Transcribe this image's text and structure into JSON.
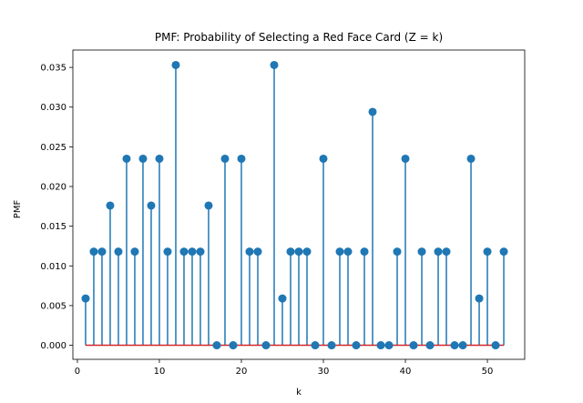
{
  "chart_data": {
    "type": "stem",
    "title": "PMF: Probability of Selecting a Red Face Card (Z = k)",
    "xlabel": "k",
    "ylabel": "PMF",
    "xlim": [
      -0.55,
      54.55
    ],
    "ylim": [
      -0.00177,
      0.03719
    ],
    "xticks": [
      0,
      10,
      20,
      30,
      40,
      50
    ],
    "xtick_labels": [
      "0",
      "10",
      "20",
      "30",
      "40",
      "50"
    ],
    "yticks": [
      0.0,
      0.005,
      0.01,
      0.015,
      0.02,
      0.025,
      0.03,
      0.035
    ],
    "ytick_labels": [
      "0.000",
      "0.005",
      "0.010",
      "0.015",
      "0.020",
      "0.025",
      "0.030",
      "0.035"
    ],
    "grid": false,
    "colors": {
      "stem": "#1f77b4",
      "baseline": "#d62728"
    },
    "baseline": {
      "y": 0,
      "x_from": 1,
      "x_to": 52
    },
    "x": [
      1,
      2,
      3,
      4,
      5,
      6,
      7,
      8,
      9,
      10,
      11,
      12,
      13,
      14,
      15,
      16,
      17,
      18,
      19,
      20,
      21,
      22,
      23,
      24,
      25,
      26,
      27,
      28,
      29,
      30,
      31,
      32,
      33,
      34,
      35,
      36,
      37,
      38,
      39,
      40,
      41,
      42,
      43,
      44,
      45,
      46,
      47,
      48,
      49,
      50,
      51,
      52
    ],
    "values": [
      0.0059,
      0.0118,
      0.0118,
      0.0176,
      0.0118,
      0.0235,
      0.0118,
      0.0235,
      0.0176,
      0.0235,
      0.0118,
      0.0353,
      0.0118,
      0.0118,
      0.0118,
      0.0176,
      0,
      0.0235,
      0,
      0.0235,
      0.0118,
      0.0118,
      0,
      0.0353,
      0.0059,
      0.0118,
      0.0118,
      0.0118,
      0,
      0.0235,
      0,
      0.0118,
      0.0118,
      0,
      0.0118,
      0.0294,
      0,
      0,
      0.0118,
      0.0235,
      0,
      0.0118,
      0,
      0.0118,
      0.0118,
      0,
      0,
      0.0235,
      0.0059,
      0.0118,
      0,
      0.0118
    ]
  }
}
